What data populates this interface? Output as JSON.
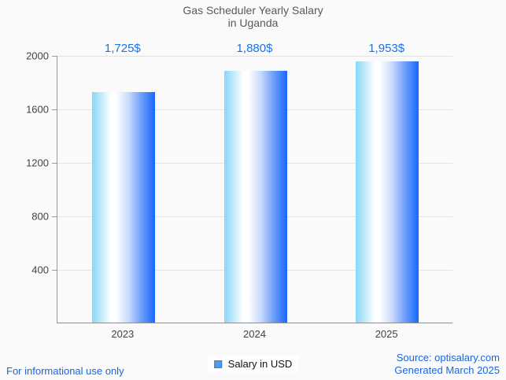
{
  "title": {
    "line1": "Gas Scheduler Yearly Salary",
    "line2": "in Uganda"
  },
  "chart_data": {
    "type": "bar",
    "title": "Gas Scheduler Yearly Salary in Uganda",
    "categories": [
      "2023",
      "2024",
      "2025"
    ],
    "values": [
      1725,
      1880,
      1953
    ],
    "value_labels": [
      "1,725$",
      "1,880$",
      "1,953$"
    ],
    "series_name": "Salary in USD",
    "xlabel": "",
    "ylabel": "",
    "ylim": [
      0,
      2000
    ],
    "yticks": [
      400,
      800,
      1200,
      1600,
      2000
    ],
    "grid": true,
    "legend_position": "bottom-center"
  },
  "legend": {
    "label": "Salary in USD",
    "marker_fill": "#4a9bf5",
    "marker_border": "#757575"
  },
  "footer": {
    "left_note": "For informational use only",
    "source_line1": "Source: optisalary.com",
    "source_line2": "Generated March 2025"
  },
  "colors": {
    "background": "#fafafa",
    "title_text": "#595959",
    "value_label_text": "#1a73e8",
    "axis_label_text": "#424242",
    "axis_line": "#9a9a9a",
    "gridline": "#e2e2e2",
    "footer_link_text": "#1a66d9",
    "bar_gradient": [
      "#87d7f8",
      "#ffffff",
      "#c9dafc",
      "#6f9ffa",
      "#1768fd"
    ]
  }
}
